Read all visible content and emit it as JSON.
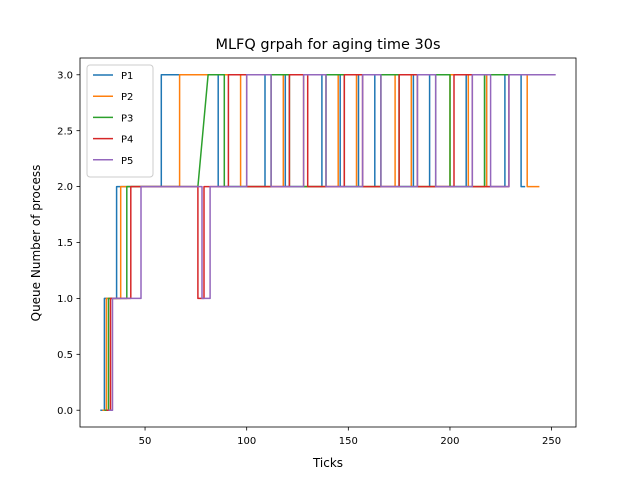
{
  "chart_data": {
    "type": "line",
    "title": "MLFQ  grpah for aging time 30s",
    "xlabel": "Ticks",
    "ylabel": "Queue Number of process",
    "xlim": [
      18,
      262
    ],
    "ylim": [
      -0.15,
      3.15
    ],
    "xticks": [
      50,
      100,
      150,
      200,
      250
    ],
    "yticks": [
      0.0,
      0.5,
      1.0,
      1.5,
      2.0,
      2.5,
      3.0
    ],
    "ytick_labels": [
      "0.0",
      "0.5",
      "1.0",
      "1.5",
      "2.0",
      "2.5",
      "3.0"
    ],
    "xtick_labels": [
      "50",
      "100",
      "150",
      "200",
      "250"
    ],
    "grid": false,
    "legend_position": "upper-left",
    "series": [
      {
        "name": "P1",
        "color": "#1f77b4",
        "points": [
          [
            28,
            0
          ],
          [
            30,
            0
          ],
          [
            30,
            1
          ],
          [
            36,
            1
          ],
          [
            36,
            2
          ],
          [
            58,
            2
          ],
          [
            58,
            3
          ],
          [
            86,
            3
          ],
          [
            86,
            2
          ],
          [
            109,
            2
          ],
          [
            109,
            3
          ],
          [
            119,
            3
          ],
          [
            119,
            2
          ],
          [
            137,
            2
          ],
          [
            137,
            3
          ],
          [
            146,
            3
          ],
          [
            146,
            2
          ],
          [
            155,
            2
          ],
          [
            155,
            3
          ],
          [
            163,
            3
          ],
          [
            163,
            2
          ],
          [
            182,
            2
          ],
          [
            182,
            3
          ],
          [
            190,
            3
          ],
          [
            190,
            2
          ],
          [
            208,
            2
          ],
          [
            208,
            3
          ],
          [
            218,
            3
          ],
          [
            218,
            2
          ],
          [
            227,
            2
          ],
          [
            227,
            3
          ],
          [
            235,
            3
          ],
          [
            235,
            2
          ],
          [
            237,
            2
          ]
        ]
      },
      {
        "name": "P2",
        "color": "#ff7f0e",
        "points": [
          [
            29,
            0
          ],
          [
            31,
            0
          ],
          [
            31,
            1
          ],
          [
            38,
            1
          ],
          [
            38,
            2
          ],
          [
            67,
            2
          ],
          [
            67,
            3
          ],
          [
            97,
            3
          ],
          [
            97,
            2
          ],
          [
            118,
            2
          ],
          [
            118,
            3
          ],
          [
            128,
            3
          ],
          [
            128,
            2
          ],
          [
            145,
            2
          ],
          [
            145,
            3
          ],
          [
            154,
            3
          ],
          [
            154,
            2
          ],
          [
            173,
            2
          ],
          [
            173,
            3
          ],
          [
            181,
            3
          ],
          [
            181,
            2
          ],
          [
            200,
            2
          ],
          [
            200,
            3
          ],
          [
            209,
            3
          ],
          [
            209,
            2
          ],
          [
            218,
            2
          ],
          [
            218,
            3
          ],
          [
            238,
            3
          ],
          [
            238,
            2
          ],
          [
            244,
            2
          ]
        ]
      },
      {
        "name": "P3",
        "color": "#2ca02c",
        "points": [
          [
            30,
            0
          ],
          [
            32,
            0
          ],
          [
            32,
            1
          ],
          [
            41,
            1
          ],
          [
            41,
            2
          ],
          [
            76,
            2
          ],
          [
            81,
            3
          ],
          [
            89,
            3
          ],
          [
            89,
            2
          ],
          [
            112,
            2
          ],
          [
            112,
            3
          ],
          [
            121,
            3
          ],
          [
            121,
            2
          ],
          [
            139,
            2
          ],
          [
            139,
            3
          ],
          [
            148,
            3
          ],
          [
            148,
            2
          ],
          [
            166,
            2
          ],
          [
            166,
            3
          ],
          [
            175,
            3
          ],
          [
            175,
            2
          ],
          [
            193,
            2
          ],
          [
            193,
            3
          ],
          [
            200,
            3
          ],
          [
            200,
            2
          ],
          [
            217,
            2
          ],
          [
            217,
            3
          ],
          [
            250,
            3
          ]
        ]
      },
      {
        "name": "P4",
        "color": "#d62728",
        "points": [
          [
            31,
            0
          ],
          [
            33,
            0
          ],
          [
            33,
            1
          ],
          [
            43,
            1
          ],
          [
            43,
            2
          ],
          [
            76,
            2
          ],
          [
            76,
            1
          ],
          [
            79,
            1
          ],
          [
            79,
            2
          ],
          [
            91,
            2
          ],
          [
            91,
            3
          ],
          [
            100,
            3
          ],
          [
            100,
            2
          ],
          [
            121,
            2
          ],
          [
            121,
            3
          ],
          [
            130,
            3
          ],
          [
            130,
            2
          ],
          [
            148,
            2
          ],
          [
            148,
            3
          ],
          [
            157,
            3
          ],
          [
            157,
            2
          ],
          [
            175,
            2
          ],
          [
            175,
            3
          ],
          [
            184,
            3
          ],
          [
            184,
            2
          ],
          [
            202,
            2
          ],
          [
            202,
            3
          ],
          [
            211,
            3
          ],
          [
            211,
            2
          ],
          [
            229,
            2
          ],
          [
            229,
            3
          ],
          [
            250,
            3
          ]
        ]
      },
      {
        "name": "P5",
        "color": "#9467bd",
        "points": [
          [
            32,
            0
          ],
          [
            34,
            0
          ],
          [
            34,
            1
          ],
          [
            48,
            1
          ],
          [
            48,
            2
          ],
          [
            78,
            2
          ],
          [
            78,
            1
          ],
          [
            82,
            1
          ],
          [
            82,
            2
          ],
          [
            100,
            2
          ],
          [
            100,
            3
          ],
          [
            112,
            3
          ],
          [
            112,
            2
          ],
          [
            128,
            2
          ],
          [
            128,
            3
          ],
          [
            139,
            3
          ],
          [
            139,
            2
          ],
          [
            157,
            2
          ],
          [
            157,
            3
          ],
          [
            166,
            3
          ],
          [
            166,
            2
          ],
          [
            184,
            2
          ],
          [
            184,
            3
          ],
          [
            193,
            3
          ],
          [
            193,
            2
          ],
          [
            211,
            2
          ],
          [
            211,
            3
          ],
          [
            220,
            3
          ],
          [
            220,
            2
          ],
          [
            229,
            2
          ],
          [
            229,
            3
          ],
          [
            252,
            3
          ]
        ]
      }
    ]
  }
}
